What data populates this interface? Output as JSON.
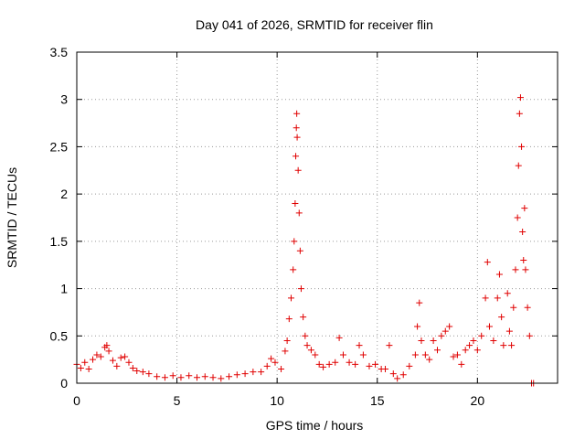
{
  "chart_data": {
    "type": "scatter",
    "title": "Day 041 of 2026, SRMTID for receiver flin",
    "xlabel": "GPS time / hours",
    "ylabel": "SRMTID / TECUs",
    "xlim": [
      0,
      24
    ],
    "ylim": [
      0,
      3.5
    ],
    "xticks": [
      0,
      5,
      10,
      15,
      20
    ],
    "xtick_labels": [
      "0",
      "5",
      "10",
      "15",
      "20"
    ],
    "yticks": [
      0,
      0.5,
      1,
      1.5,
      2,
      2.5,
      3,
      3.5
    ],
    "ytick_labels": [
      "0",
      "0.5",
      "1",
      "1.5",
      "2",
      "2.5",
      "3",
      "3.5"
    ],
    "grid": true,
    "marker": "+",
    "color": "#e00000",
    "series": [
      {
        "name": "SRMTID",
        "points": [
          [
            0.0,
            0.2
          ],
          [
            0.2,
            0.16
          ],
          [
            0.4,
            0.22
          ],
          [
            0.6,
            0.15
          ],
          [
            0.8,
            0.25
          ],
          [
            1.0,
            0.3
          ],
          [
            1.2,
            0.28
          ],
          [
            1.4,
            0.38
          ],
          [
            1.5,
            0.4
          ],
          [
            1.6,
            0.34
          ],
          [
            1.8,
            0.24
          ],
          [
            2.0,
            0.18
          ],
          [
            2.2,
            0.27
          ],
          [
            2.4,
            0.28
          ],
          [
            2.6,
            0.22
          ],
          [
            2.8,
            0.16
          ],
          [
            3.0,
            0.13
          ],
          [
            3.3,
            0.12
          ],
          [
            3.6,
            0.1
          ],
          [
            4.0,
            0.07
          ],
          [
            4.4,
            0.06
          ],
          [
            4.8,
            0.08
          ],
          [
            5.2,
            0.06
          ],
          [
            5.6,
            0.08
          ],
          [
            6.0,
            0.06
          ],
          [
            6.4,
            0.07
          ],
          [
            6.8,
            0.06
          ],
          [
            7.2,
            0.05
          ],
          [
            7.6,
            0.07
          ],
          [
            8.0,
            0.09
          ],
          [
            8.4,
            0.1
          ],
          [
            8.8,
            0.12
          ],
          [
            9.2,
            0.12
          ],
          [
            9.5,
            0.18
          ],
          [
            9.7,
            0.26
          ],
          [
            9.9,
            0.22
          ],
          [
            10.2,
            0.15
          ],
          [
            10.4,
            0.34
          ],
          [
            10.5,
            0.45
          ],
          [
            10.6,
            0.68
          ],
          [
            10.7,
            0.9
          ],
          [
            10.8,
            1.2
          ],
          [
            10.85,
            1.5
          ],
          [
            10.9,
            1.9
          ],
          [
            10.93,
            2.4
          ],
          [
            10.96,
            2.7
          ],
          [
            10.98,
            2.85
          ],
          [
            11.0,
            2.6
          ],
          [
            11.05,
            2.25
          ],
          [
            11.1,
            1.8
          ],
          [
            11.15,
            1.4
          ],
          [
            11.2,
            1.0
          ],
          [
            11.3,
            0.7
          ],
          [
            11.4,
            0.5
          ],
          [
            11.5,
            0.4
          ],
          [
            11.7,
            0.35
          ],
          [
            11.9,
            0.3
          ],
          [
            12.1,
            0.2
          ],
          [
            12.3,
            0.17
          ],
          [
            12.6,
            0.2
          ],
          [
            12.9,
            0.22
          ],
          [
            13.1,
            0.48
          ],
          [
            13.3,
            0.3
          ],
          [
            13.6,
            0.22
          ],
          [
            13.9,
            0.2
          ],
          [
            14.1,
            0.4
          ],
          [
            14.3,
            0.3
          ],
          [
            14.6,
            0.18
          ],
          [
            14.9,
            0.2
          ],
          [
            15.2,
            0.15
          ],
          [
            15.4,
            0.15
          ],
          [
            15.6,
            0.4
          ],
          [
            15.8,
            0.1
          ],
          [
            16.0,
            0.05
          ],
          [
            16.3,
            0.09
          ],
          [
            16.6,
            0.18
          ],
          [
            16.9,
            0.3
          ],
          [
            17.0,
            0.6
          ],
          [
            17.1,
            0.85
          ],
          [
            17.2,
            0.45
          ],
          [
            17.4,
            0.3
          ],
          [
            17.6,
            0.25
          ],
          [
            17.8,
            0.45
          ],
          [
            18.0,
            0.35
          ],
          [
            18.2,
            0.5
          ],
          [
            18.4,
            0.55
          ],
          [
            18.6,
            0.6
          ],
          [
            18.8,
            0.28
          ],
          [
            19.0,
            0.3
          ],
          [
            19.2,
            0.2
          ],
          [
            19.4,
            0.35
          ],
          [
            19.6,
            0.4
          ],
          [
            19.8,
            0.45
          ],
          [
            20.0,
            0.35
          ],
          [
            20.2,
            0.5
          ],
          [
            20.4,
            0.9
          ],
          [
            20.5,
            1.28
          ],
          [
            20.6,
            0.6
          ],
          [
            20.8,
            0.45
          ],
          [
            21.0,
            0.9
          ],
          [
            21.1,
            1.15
          ],
          [
            21.2,
            0.7
          ],
          [
            21.3,
            0.4
          ],
          [
            21.5,
            0.95
          ],
          [
            21.6,
            0.55
          ],
          [
            21.7,
            0.4
          ],
          [
            21.8,
            0.8
          ],
          [
            21.9,
            1.2
          ],
          [
            22.0,
            1.75
          ],
          [
            22.05,
            2.3
          ],
          [
            22.1,
            2.85
          ],
          [
            22.15,
            3.02
          ],
          [
            22.2,
            2.5
          ],
          [
            22.25,
            1.6
          ],
          [
            22.3,
            1.3
          ],
          [
            22.35,
            1.85
          ],
          [
            22.4,
            1.2
          ],
          [
            22.5,
            0.8
          ],
          [
            22.6,
            0.5
          ],
          [
            22.7,
            0.0
          ],
          [
            22.8,
            0.0
          ]
        ]
      }
    ]
  }
}
